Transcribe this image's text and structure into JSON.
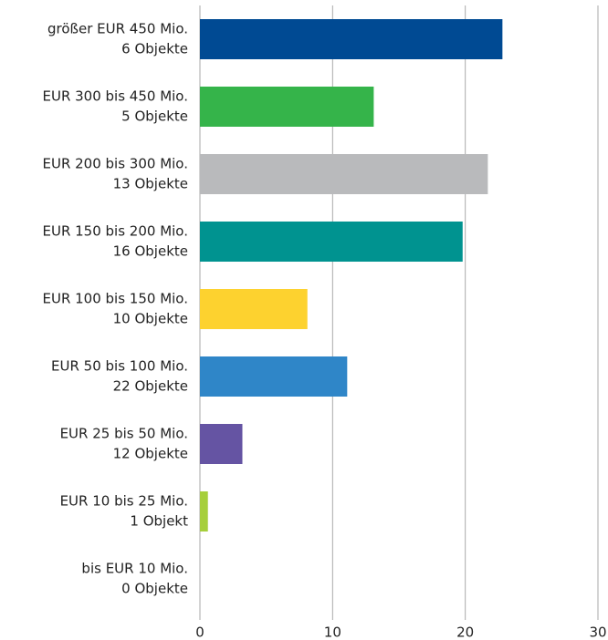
{
  "chart_data": {
    "type": "barh",
    "categories": [
      [
        "größer EUR 450 Mio.",
        "6 Objekte"
      ],
      [
        "EUR 300 bis 450 Mio.",
        "5 Objekte"
      ],
      [
        "EUR 200 bis 300 Mio.",
        "13 Objekte"
      ],
      [
        "EUR 150 bis 200 Mio.",
        "16 Objekte"
      ],
      [
        "EUR 100 bis 150 Mio.",
        "10 Objekte"
      ],
      [
        "EUR 50 bis 100 Mio.",
        "22 Objekte"
      ],
      [
        "EUR 25 bis 50 Mio.",
        "12 Objekte"
      ],
      [
        "EUR 10 bis 25 Mio.",
        "1 Objekt"
      ],
      [
        "bis EUR 10 Mio.",
        "0 Objekte"
      ]
    ],
    "values": [
      22.8,
      13.1,
      21.7,
      19.8,
      8.1,
      11.1,
      3.2,
      0.6,
      0
    ],
    "colors": [
      "#004a93",
      "#35b44a",
      "#b9babc",
      "#009390",
      "#fdd22f",
      "#2f86c8",
      "#6554a3",
      "#a6cf3b",
      "#999999"
    ],
    "xlim": [
      0,
      30
    ],
    "xticks": [
      0,
      10,
      20,
      30
    ],
    "grid": true
  }
}
